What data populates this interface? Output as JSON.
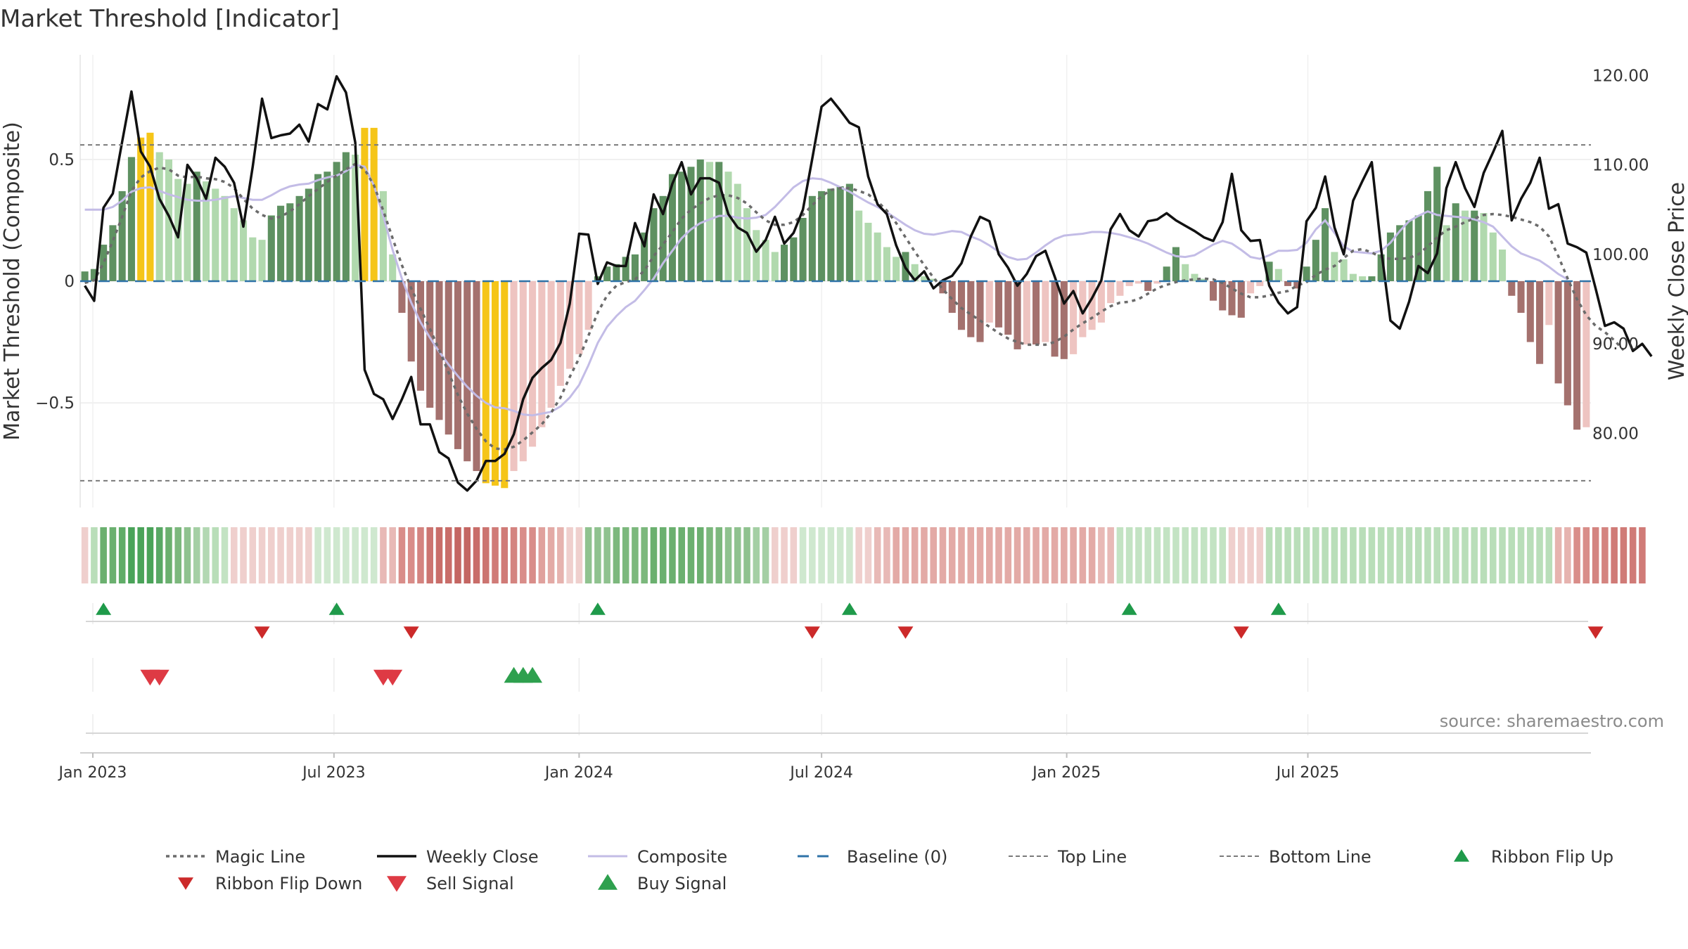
{
  "chart_data": {
    "type": "bar",
    "title": "Market Threshold [Indicator]",
    "ylabel_left": "Market Threshold (Composite)",
    "ylabel_right": "Weekly Close Price",
    "source": "source: sharemaestro.com",
    "x_start": "2022-12-26",
    "x_step_days": 7,
    "x_ticks": [
      {
        "date": "2023-01-01",
        "label": "Jan 2023"
      },
      {
        "date": "2023-07-01",
        "label": "Jul 2023"
      },
      {
        "date": "2024-01-01",
        "label": "Jan 2024"
      },
      {
        "date": "2024-07-01",
        "label": "Jul 2024"
      },
      {
        "date": "2025-01-01",
        "label": "Jan 2025"
      },
      {
        "date": "2025-07-01",
        "label": "Jul 2025"
      }
    ],
    "left_axis": {
      "ylim": [
        -0.93,
        0.93
      ],
      "ticks": [
        {
          "v": 0.5,
          "label": "0.5"
        },
        {
          "v": 0,
          "label": "0"
        },
        {
          "v": -0.5,
          "label": "−0.5"
        }
      ]
    },
    "right_axis": {
      "ylim": [
        71.7,
        122.3
      ],
      "ticks": [
        {
          "v": 120,
          "label": "120.00"
        },
        {
          "v": 110,
          "label": "110.00"
        },
        {
          "v": 100,
          "label": "100.00"
        },
        {
          "v": 90,
          "label": "90.00"
        },
        {
          "v": 80,
          "label": "80.00"
        }
      ]
    },
    "top_line": 0.56,
    "bottom_line": -0.82,
    "histogram_zero_anchor_index": 0,
    "histogram": [
      0.04,
      0.05,
      0.15,
      0.23,
      0.37,
      0.51,
      0.59,
      0.61,
      0.53,
      0.5,
      0.42,
      0.4,
      0.45,
      0.41,
      0.38,
      0.35,
      0.3,
      0.25,
      0.18,
      0.17,
      0.27,
      0.31,
      0.32,
      0.35,
      0.38,
      0.44,
      0.45,
      0.49,
      0.53,
      0.52,
      0.63,
      0.63,
      0.37,
      0.11,
      -0.13,
      -0.33,
      -0.45,
      -0.52,
      -0.57,
      -0.63,
      -0.69,
      -0.74,
      -0.78,
      -0.83,
      -0.84,
      -0.85,
      -0.78,
      -0.74,
      -0.68,
      -0.6,
      -0.52,
      -0.43,
      -0.36,
      -0.3,
      -0.2,
      0.02,
      0.06,
      0.07,
      0.1,
      0.11,
      0.2,
      0.3,
      0.35,
      0.44,
      0.45,
      0.47,
      0.5,
      0.49,
      0.49,
      0.45,
      0.4,
      0.3,
      0.21,
      0.17,
      0.12,
      0.15,
      0.18,
      0.26,
      0.35,
      0.37,
      0.38,
      0.39,
      0.4,
      0.29,
      0.24,
      0.2,
      0.14,
      0.1,
      0.12,
      0.07,
      0.02,
      0.01,
      -0.05,
      -0.13,
      -0.2,
      -0.23,
      -0.25,
      -0.17,
      -0.19,
      -0.22,
      -0.28,
      -0.26,
      -0.26,
      -0.25,
      -0.31,
      -0.32,
      -0.3,
      -0.23,
      -0.2,
      -0.17,
      -0.09,
      -0.06,
      -0.02,
      -0.01,
      -0.04,
      -0.01,
      0.06,
      0.14,
      0.07,
      0.03,
      0.01,
      -0.08,
      -0.12,
      -0.14,
      -0.15,
      -0.05,
      -0.02,
      0.08,
      0.05,
      -0.02,
      -0.03,
      0.06,
      0.17,
      0.3,
      0.12,
      0.09,
      0.03,
      0.02,
      0.02,
      0.11,
      0.2,
      0.23,
      0.25,
      0.27,
      0.37,
      0.47,
      0.23,
      0.32,
      0.29,
      0.29,
      0.28,
      0.2,
      0.13,
      -0.06,
      -0.13,
      -0.25,
      -0.34,
      -0.18,
      -0.42,
      -0.51,
      -0.61,
      -0.6
    ],
    "highlight_gold": [
      6,
      7,
      30,
      31,
      43,
      44,
      45
    ],
    "weekly_close": [
      96.5,
      94.8,
      105.2,
      106.8,
      112.6,
      118.2,
      111.5,
      109.8,
      106.2,
      104.3,
      101.9,
      110.0,
      108.5,
      106.2,
      110.8,
      109.8,
      108.0,
      103.1,
      109.8,
      117.4,
      113.0,
      113.3,
      113.5,
      114.5,
      112.6,
      116.8,
      116.2,
      119.9,
      118.1,
      112.5,
      87.1,
      84.4,
      83.8,
      81.6,
      83.8,
      86.3,
      81.0,
      81.0,
      77.9,
      77.2,
      74.5,
      73.6,
      74.7,
      76.9,
      76.9,
      77.7,
      79.9,
      83.8,
      86.2,
      87.3,
      88.2,
      90.1,
      94.5,
      102.3,
      102.2,
      96.7,
      99.1,
      98.7,
      98.7,
      103.5,
      100.9,
      106.7,
      104.5,
      107.9,
      110.3,
      106.7,
      108.5,
      108.5,
      108.0,
      104.5,
      103.0,
      102.4,
      100.3,
      101.6,
      104.2,
      101.2,
      102.4,
      105.0,
      110.7,
      116.5,
      117.4,
      116.1,
      114.7,
      114.2,
      108.7,
      105.6,
      104.5,
      101.0,
      98.5,
      97.1,
      98.1,
      96.2,
      97.1,
      97.6,
      99.0,
      102.0,
      104.2,
      103.7,
      100.0,
      98.5,
      96.5,
      97.8,
      99.8,
      100.4,
      97.5,
      94.5,
      95.9,
      93.4,
      95.1,
      97.1,
      102.8,
      104.5,
      102.7,
      102.0,
      103.7,
      103.9,
      104.6,
      103.8,
      103.2,
      102.6,
      101.9,
      101.5,
      103.6,
      109.0,
      102.7,
      101.5,
      101.6,
      96.5,
      94.6,
      93.4,
      94.1,
      103.7,
      105.2,
      108.7,
      103.0,
      100.0,
      106.0,
      108.2,
      110.3,
      100.6,
      92.6,
      91.7,
      94.7,
      98.7,
      97.9,
      100.1,
      107.4,
      110.3,
      107.4,
      105.3,
      109.1,
      111.4,
      113.8,
      103.8,
      106.2,
      108.0,
      110.8,
      105.1,
      105.6,
      101.2,
      100.8,
      100.2,
      96.2,
      92.0,
      92.4,
      91.7,
      89.2,
      90.0,
      88.6
    ],
    "magic_line": [
      96.8,
      97.1,
      99.0,
      101.5,
      104.2,
      107.1,
      108.6,
      109.3,
      109.7,
      109.5,
      108.8,
      108.6,
      108.7,
      108.5,
      108.4,
      108.1,
      107.4,
      106.2,
      105.1,
      104.4,
      104.0,
      104.2,
      104.8,
      105.6,
      106.5,
      107.3,
      108.1,
      108.8,
      109.5,
      110.1,
      109.5,
      107.7,
      104.9,
      101.8,
      98.8,
      96.2,
      93.9,
      91.7,
      89.3,
      86.8,
      84.3,
      82.2,
      80.5,
      79.1,
      78.3,
      78.2,
      78.5,
      79.2,
      80.1,
      81.0,
      82.3,
      84.0,
      86.3,
      88.4,
      90.9,
      93.5,
      95.4,
      96.5,
      96.9,
      97.2,
      98.2,
      99.8,
      101.1,
      102.5,
      104.0,
      105.0,
      105.7,
      106.3,
      106.6,
      106.6,
      106.3,
      105.7,
      104.7,
      103.8,
      103.3,
      103.3,
      103.6,
      104.4,
      105.5,
      106.5,
      107.2,
      107.4,
      107.4,
      107.1,
      106.7,
      105.9,
      104.9,
      103.5,
      101.9,
      100.3,
      98.8,
      97.4,
      96.1,
      95.0,
      94.0,
      93.3,
      92.6,
      91.9,
      91.2,
      90.6,
      90.2,
      89.9,
      89.9,
      89.9,
      90.2,
      90.8,
      91.6,
      92.3,
      92.9,
      93.6,
      94.2,
      94.6,
      94.7,
      95.0,
      95.6,
      96.2,
      96.6,
      96.9,
      97.1,
      97.2,
      97.3,
      97.2,
      96.8,
      96.2,
      95.6,
      95.2,
      95.2,
      95.4,
      95.7,
      95.9,
      96.5,
      96.9,
      97.7,
      98.3,
      98.7,
      99.6,
      100.4,
      100.6,
      100.2,
      99.7,
      99.5,
      99.5,
      99.6,
      100.0,
      100.9,
      101.9,
      102.7,
      103.1,
      103.6,
      104.0,
      104.4,
      104.5,
      104.4,
      104.2,
      103.9,
      103.6,
      103.1,
      102.0,
      99.8,
      97.3,
      95.0,
      93.2,
      92.0,
      91.3,
      90.4,
      89.3
    ],
    "composite": [
      105.0,
      105.0,
      105.0,
      105.3,
      106.0,
      107.0,
      107.4,
      107.5,
      107.1,
      106.7,
      106.4,
      106.1,
      106.0,
      106.0,
      106.1,
      106.3,
      106.5,
      106.3,
      106.1,
      106.1,
      106.6,
      107.2,
      107.6,
      107.8,
      107.9,
      108.3,
      108.6,
      108.8,
      109.3,
      110.0,
      109.8,
      107.7,
      104.3,
      100.5,
      97.3,
      94.6,
      92.4,
      90.7,
      89.1,
      87.7,
      86.4,
      85.2,
      84.2,
      83.4,
      82.9,
      82.8,
      82.5,
      82.1,
      82.0,
      82.2,
      82.4,
      83.0,
      84.0,
      85.4,
      87.6,
      90.1,
      91.9,
      93.1,
      94.1,
      94.8,
      96.0,
      97.3,
      99.0,
      100.4,
      101.8,
      102.8,
      103.5,
      103.9,
      104.3,
      104.3,
      104.1,
      104.0,
      104.1,
      104.4,
      105.3,
      106.4,
      107.5,
      108.2,
      108.5,
      108.4,
      108.0,
      107.5,
      107.0,
      106.4,
      105.8,
      105.3,
      104.7,
      104.0,
      103.3,
      102.7,
      102.3,
      102.2,
      102.4,
      102.6,
      102.5,
      102.0,
      101.6,
      101.0,
      100.3,
      99.7,
      99.4,
      99.5,
      100.2,
      101.0,
      101.7,
      102.1,
      102.2,
      102.3,
      102.5,
      102.5,
      102.4,
      102.2,
      101.9,
      101.6,
      101.2,
      100.7,
      100.2,
      99.8,
      99.7,
      99.9,
      100.5,
      101.1,
      101.5,
      101.2,
      100.5,
      99.7,
      99.5,
      99.9,
      100.4,
      100.4,
      100.5,
      101.3,
      102.8,
      103.8,
      102.4,
      100.9,
      100.3,
      100.2,
      100.1,
      100.4,
      101.3,
      102.6,
      103.7,
      104.3,
      104.8,
      104.4,
      104.3,
      104.2,
      104.1,
      103.9,
      103.6,
      103.1,
      102.0,
      100.9,
      100.1,
      99.7,
      99.3,
      98.6,
      97.8,
      97.2
    ],
    "ribbon_hex": [
      "#efcfcd",
      "#b9deb9",
      "#6bb06f",
      "#6bb06f",
      "#60ad68",
      "#4aa359",
      "#4aa359",
      "#4aa359",
      "#59a865",
      "#6bb06f",
      "#7cb87d",
      "#8fc28f",
      "#a4cfa4",
      "#b3d8b3",
      "#b9deb9",
      "#c3e3c3",
      "#efcfcd",
      "#efcfcd",
      "#efcfcd",
      "#efcfcd",
      "#efcfcd",
      "#efcfcd",
      "#efcfcd",
      "#efcfcd",
      "#efcfcd",
      "#cfe8cf",
      "#cfe8cf",
      "#cfe8cf",
      "#cfe8cf",
      "#cfe8cf",
      "#cfe8cf",
      "#cfe8cf",
      "#e8b9b6",
      "#e8b9b6",
      "#d98d89",
      "#d98d89",
      "#d48480",
      "#cc7470",
      "#c96d69",
      "#c96d69",
      "#c46662",
      "#c46662",
      "#c96d69",
      "#cc7470",
      "#d07b77",
      "#d07b77",
      "#d48480",
      "#d98d89",
      "#d98d89",
      "#e0a19d",
      "#e3aaa6",
      "#e6b3af",
      "#efcfcd",
      "#efcfcd",
      "#8fc28f",
      "#8fc28f",
      "#8fc28f",
      "#7cb87d",
      "#7cb87d",
      "#7cb87d",
      "#7cb87d",
      "#6bb06f",
      "#6bb06f",
      "#6bb06f",
      "#6bb06f",
      "#6bb06f",
      "#6bb06f",
      "#7cb87d",
      "#7cb87d",
      "#8fc28f",
      "#8fc28f",
      "#8fc28f",
      "#a4cfa4",
      "#a4cfa4",
      "#efcfcd",
      "#efcfcd",
      "#efcfcd",
      "#cfe8cf",
      "#cfe8cf",
      "#cfe8cf",
      "#cfe8cf",
      "#cfe8cf",
      "#cfe8cf",
      "#efcfcd",
      "#efcfcd",
      "#e8b9b6",
      "#e8b9b6",
      "#e3aaa6",
      "#e3aaa6",
      "#e3aaa6",
      "#e3aaa6",
      "#e3aaa6",
      "#e3aaa6",
      "#e3aaa6",
      "#e3aaa6",
      "#e3aaa6",
      "#e3aaa6",
      "#e3aaa6",
      "#e3aaa6",
      "#e3aaa6",
      "#e3aaa6",
      "#e3aaa6",
      "#e3aaa6",
      "#e3aaa6",
      "#e3aaa6",
      "#e3aaa6",
      "#e3aaa6",
      "#e3aaa6",
      "#e3aaa6",
      "#e8b9b6",
      "#e8b9b6",
      "#c3e3c3",
      "#c3e3c3",
      "#c3e3c3",
      "#c3e3c3",
      "#c3e3c3",
      "#c3e3c3",
      "#c3e3c3",
      "#c3e3c3",
      "#c3e3c3",
      "#c3e3c3",
      "#c3e3c3",
      "#c3e3c3",
      "#efcfcd",
      "#efcfcd",
      "#efcfcd",
      "#efcfcd",
      "#b9deb9",
      "#b9deb9",
      "#b9deb9",
      "#b9deb9",
      "#b9deb9",
      "#b9deb9",
      "#b9deb9",
      "#b9deb9",
      "#b9deb9",
      "#b9deb9",
      "#b9deb9",
      "#b9deb9",
      "#b9deb9",
      "#b9deb9",
      "#b9deb9",
      "#b9deb9",
      "#b9deb9",
      "#b9deb9",
      "#b9deb9",
      "#b9deb9",
      "#b9deb9",
      "#b9deb9",
      "#b9deb9",
      "#b9deb9",
      "#b9deb9",
      "#b9deb9",
      "#b9deb9",
      "#b9deb9",
      "#b9deb9",
      "#b9deb9",
      "#b9deb9",
      "#e6b3af",
      "#e6b3af",
      "#d98d89",
      "#d98d89",
      "#d48480",
      "#d48480",
      "#d07b77",
      "#d07b77",
      "#d07b77",
      "#d07b77"
    ],
    "ribbon_flip_up": [
      2,
      27,
      55,
      82,
      112,
      128
    ],
    "ribbon_flip_down": [
      19,
      35,
      78,
      88,
      124,
      162
    ],
    "sell_signal": [
      7,
      8,
      32,
      33
    ],
    "buy_signal": [
      46,
      47,
      48
    ],
    "colors": {
      "pos_strong": "#5e9161",
      "pos_light": "#b1d9ae",
      "neg_strong": "#a4716e",
      "neg_light": "#eec4c1",
      "gold": "#f5c518",
      "close": "#111111",
      "magic": "#6b6b6b",
      "composite": "#c3bce6",
      "baseline": "#2f73a8",
      "threshold": "#7a7a7a",
      "flip_up": "#1f9a4a",
      "flip_down": "#cc2a2a",
      "sell": "#de3a44",
      "buy": "#2ea04e"
    },
    "legend": [
      {
        "key": "magic",
        "label": "Magic Line"
      },
      {
        "key": "close",
        "label": "Weekly Close"
      },
      {
        "key": "composite",
        "label": "Composite"
      },
      {
        "key": "baseline",
        "label": "Baseline (0)"
      },
      {
        "key": "top",
        "label": "Top Line"
      },
      {
        "key": "bottom",
        "label": "Bottom Line"
      },
      {
        "key": "flip_up",
        "label": "Ribbon Flip Up"
      },
      {
        "key": "flip_down",
        "label": "Ribbon Flip Down"
      },
      {
        "key": "sell",
        "label": "Sell Signal"
      },
      {
        "key": "buy",
        "label": "Buy Signal"
      }
    ]
  }
}
